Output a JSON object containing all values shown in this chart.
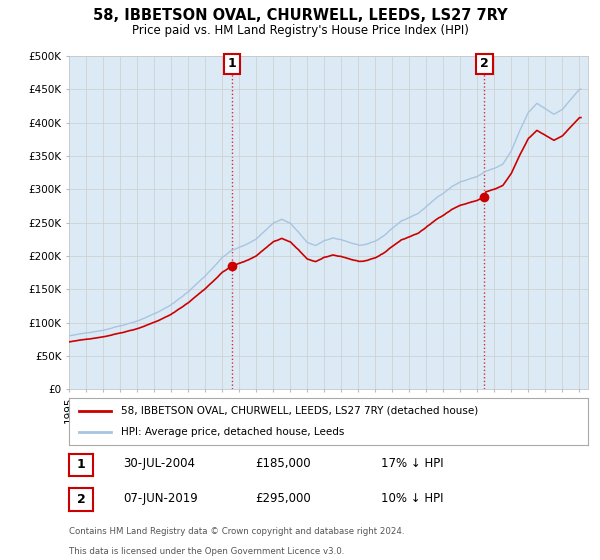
{
  "title": "58, IBBETSON OVAL, CHURWELL, LEEDS, LS27 7RY",
  "subtitle": "Price paid vs. HM Land Registry's House Price Index (HPI)",
  "legend_line1": "58, IBBETSON OVAL, CHURWELL, LEEDS, LS27 7RY (detached house)",
  "legend_line2": "HPI: Average price, detached house, Leeds",
  "annotation1_label": "1",
  "annotation1_date": "30-JUL-2004",
  "annotation1_price": "£185,000",
  "annotation1_hpi": "17% ↓ HPI",
  "annotation1_year": 2004.58,
  "annotation1_value": 185000,
  "annotation2_label": "2",
  "annotation2_date": "07-JUN-2019",
  "annotation2_price": "£295,000",
  "annotation2_hpi": "10% ↓ HPI",
  "annotation2_year": 2019.44,
  "annotation2_value": 295000,
  "footer_line1": "Contains HM Land Registry data © Crown copyright and database right 2024.",
  "footer_line2": "This data is licensed under the Open Government Licence v3.0.",
  "hpi_color": "#a8c4e0",
  "hpi_fill_color": "#dceaf5",
  "price_color": "#cc0000",
  "annotation_box_color": "#cc0000",
  "background_color": "#ffffff",
  "grid_color": "#cccccc",
  "ylim": [
    0,
    500000
  ],
  "xlim_start": 1995,
  "xlim_end": 2025.5,
  "yticks": [
    0,
    50000,
    100000,
    150000,
    200000,
    250000,
    300000,
    350000,
    400000,
    450000,
    500000
  ]
}
